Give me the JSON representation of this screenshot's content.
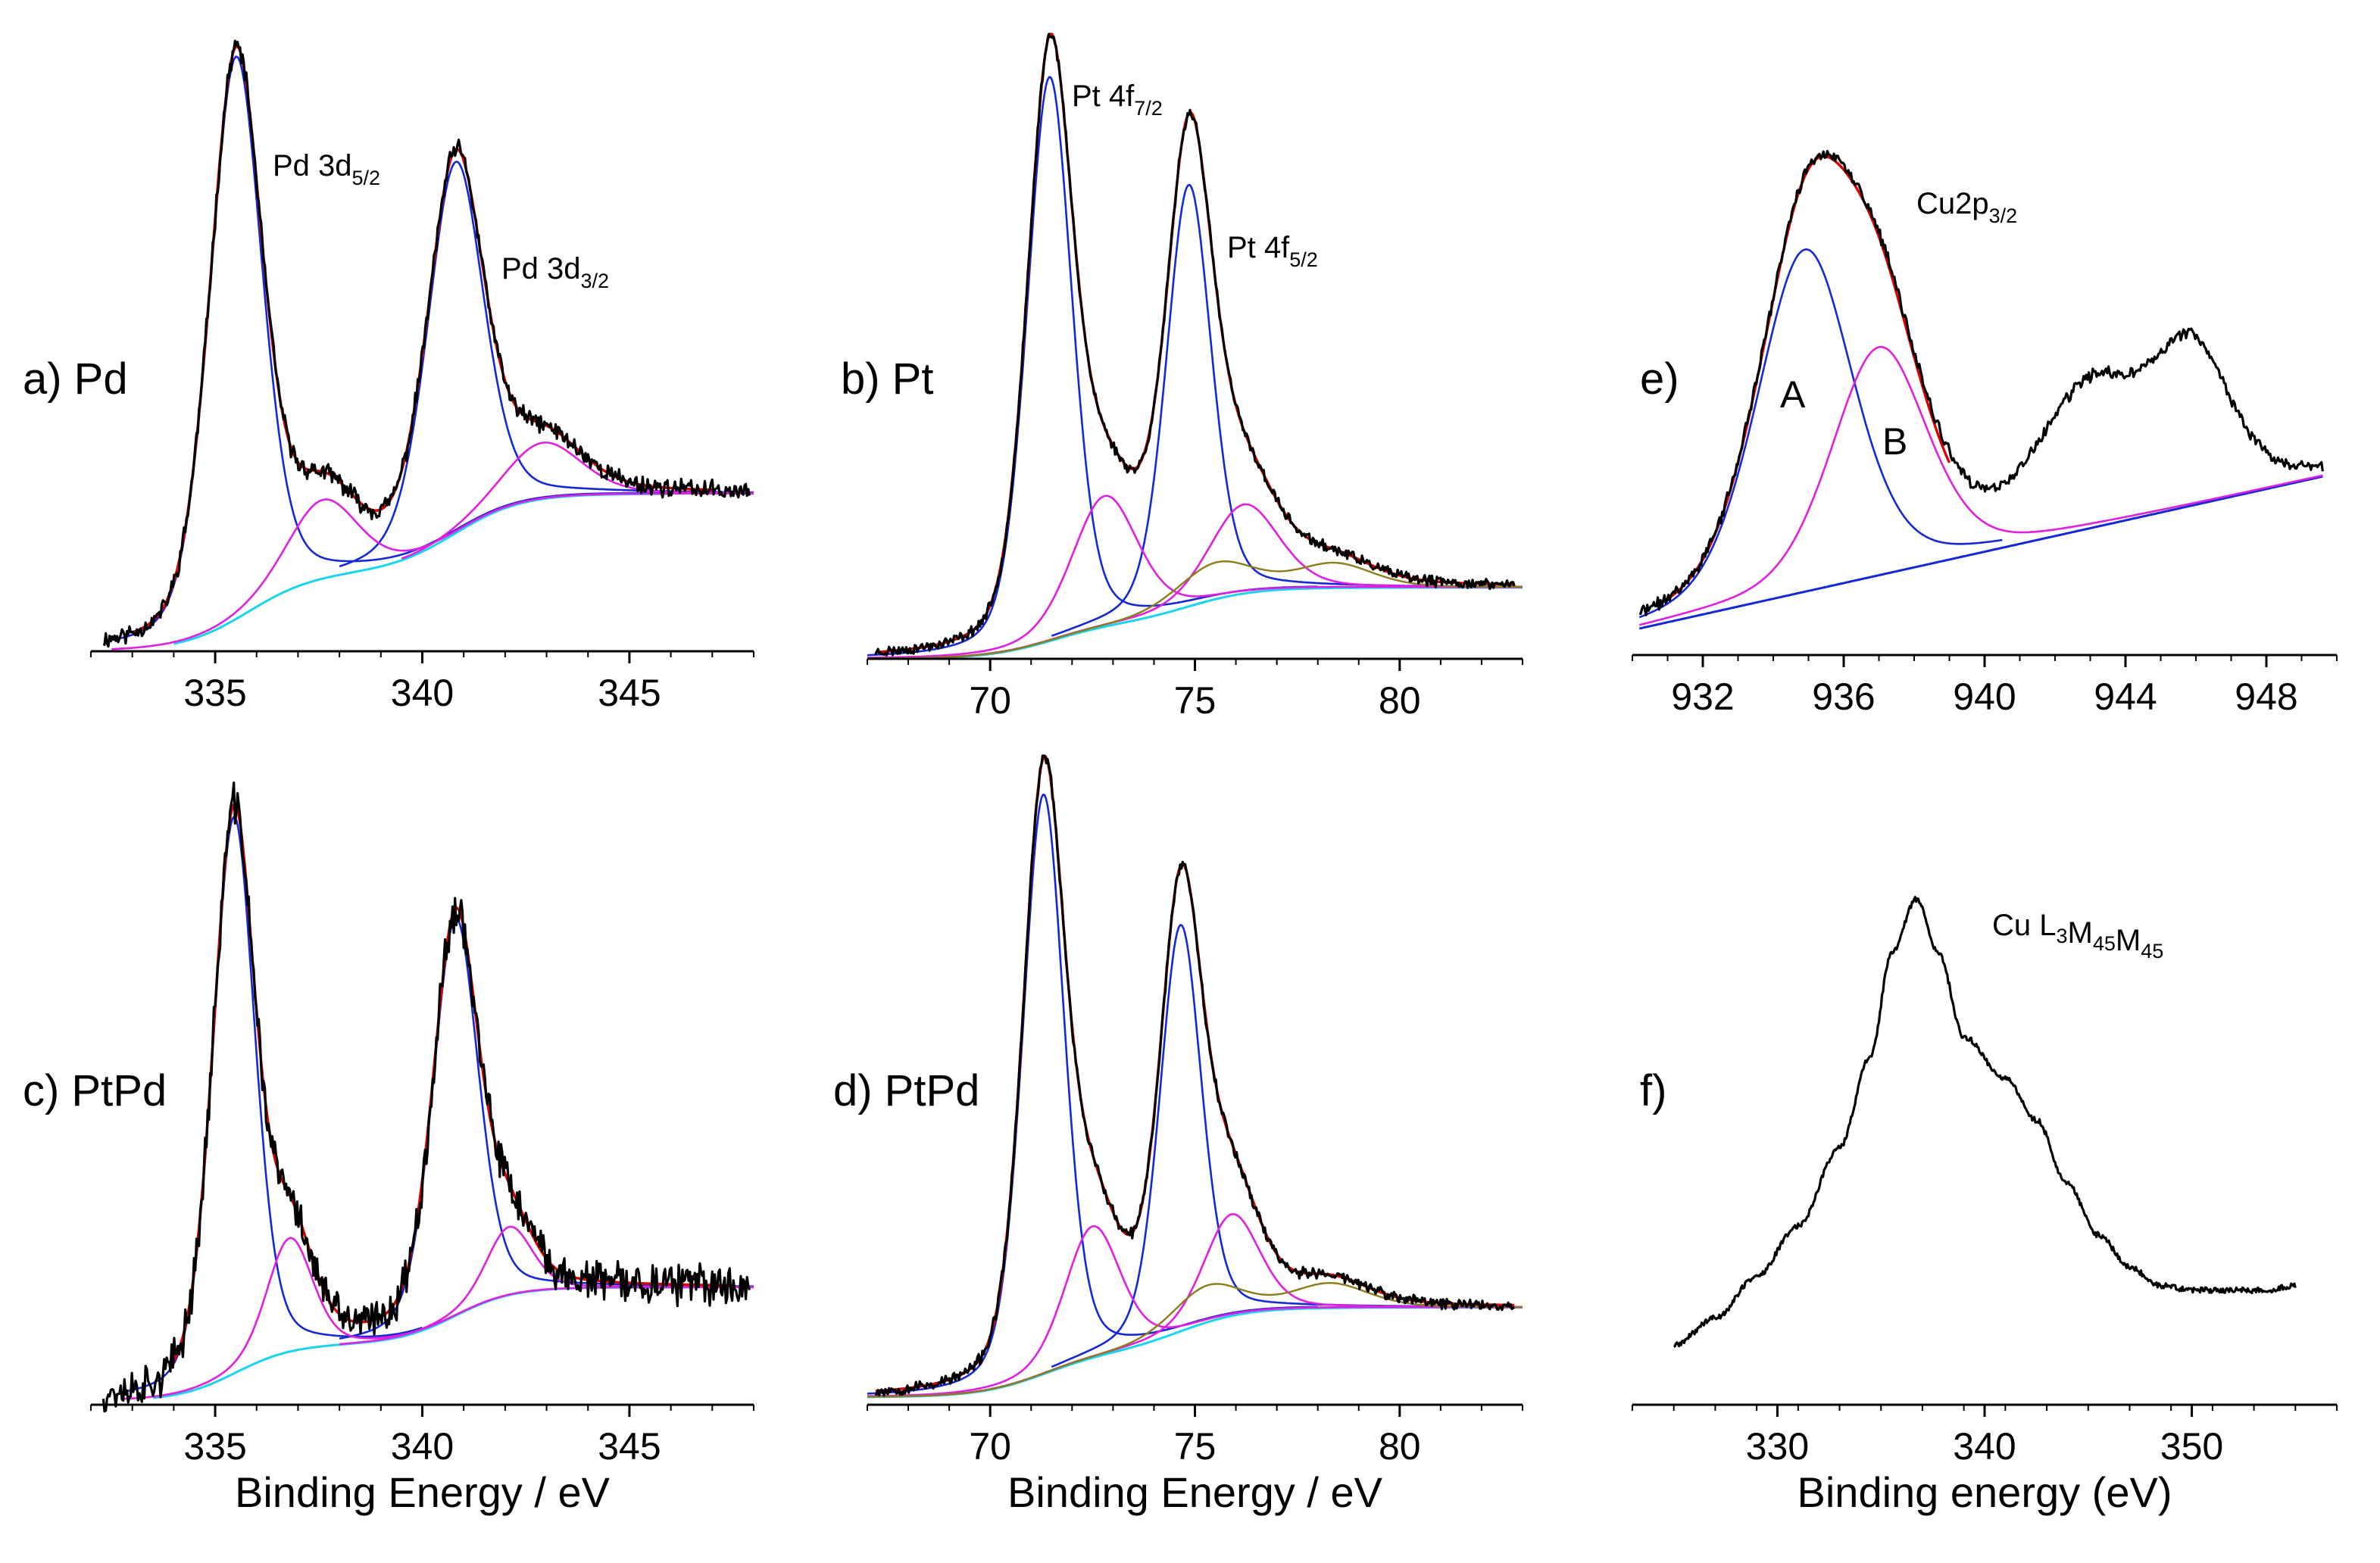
{
  "figure_title": "",
  "colors": {
    "data": "#000000",
    "envelope": "#e00000",
    "peak_main": "#1428d8",
    "peak_secondary": "#e020e0",
    "background_cyan": "#18d4ee",
    "background_olive": "#8b7d1a",
    "background_blue": "#1428d8"
  },
  "chart_data": [
    {
      "id": "a",
      "type": "line",
      "panel_label": "a) Pd",
      "xlabel": "",
      "ylabel": "",
      "xlim": [
        332,
        348
      ],
      "xticks": [
        335,
        340,
        345
      ],
      "xtick_labels": [
        "335",
        "340",
        "345"
      ],
      "annotations": [
        {
          "main": "Pd 3d",
          "sub": "5/2",
          "x": 337.8
        },
        {
          "main": "Pd 3d",
          "sub": "3/2",
          "x": 343.2
        }
      ],
      "background": {
        "kind": "shirley",
        "x0": 334.0,
        "x1": 346.0,
        "low": 0.0,
        "high": 0.28,
        "steps": [
          {
            "c": 335.8,
            "w": 0.8,
            "h": 0.5
          },
          {
            "c": 340.8,
            "w": 0.8,
            "h": 0.5
          }
        ]
      },
      "series": [
        {
          "name": "Pd 3d5/2 main",
          "role": "peak_main",
          "range": [
            332.5,
            348
          ],
          "peaks": [
            {
              "center": 335.5,
              "height": 1.0,
              "fwhm": 1.5
            }
          ]
        },
        {
          "name": "Pd 3d3/2 main",
          "role": "peak_main",
          "range": [
            338,
            348
          ],
          "peaks": [
            {
              "center": 340.8,
              "height": 0.66,
              "fwhm": 1.6
            }
          ]
        },
        {
          "name": "Pd 3d5/2 satellite",
          "role": "peak_secondary",
          "range": [
            332.5,
            348
          ],
          "peaks": [
            {
              "center": 337.6,
              "height": 0.14,
              "fwhm": 2.0
            }
          ]
        },
        {
          "name": "Pd 3d3/2 satellite",
          "role": "peak_secondary",
          "range": [
            339.5,
            348
          ],
          "peaks": [
            {
              "center": 342.9,
              "height": 0.1,
              "fwhm": 2.2
            }
          ]
        },
        {
          "name": "envelope",
          "role": "envelope",
          "range": [
            333.0,
            347.0
          ],
          "sum_all": true
        },
        {
          "name": "data",
          "role": "data",
          "range": [
            332.3,
            347.9
          ],
          "sum_all": true,
          "noise": 0.013,
          "seed": 11
        }
      ],
      "baseline": 0.0,
      "ymax": 1.05
    },
    {
      "id": "b",
      "type": "line",
      "panel_label": "b) Pt",
      "xlabel": "",
      "ylabel": "",
      "xlim": [
        67,
        83
      ],
      "xticks": [
        70,
        75,
        80
      ],
      "xtick_labels": [
        "70",
        "75",
        "80"
      ],
      "annotations": [
        {
          "main": "Pt 4f",
          "sub": "7/2",
          "x": 72.0
        },
        {
          "main": "Pt 4f",
          "sub": "5/2",
          "x": 77.1
        }
      ],
      "background": {
        "kind": "shirley",
        "x0": 67.0,
        "x1": 83.0,
        "low": 0.0,
        "high": 0.12,
        "steps": [
          {
            "c": 71.5,
            "w": 0.8,
            "h": 0.5
          },
          {
            "c": 74.9,
            "w": 0.8,
            "h": 0.5
          }
        ]
      },
      "series": [
        {
          "name": "Pt 4f7/2 main",
          "role": "peak_main",
          "range": [
            67,
            78
          ],
          "peaks": [
            {
              "center": 71.45,
              "height": 0.95,
              "fwhm": 1.3
            }
          ]
        },
        {
          "name": "Pt 4f5/2 main",
          "role": "peak_main",
          "range": [
            71.5,
            83
          ],
          "peaks": [
            {
              "center": 74.85,
              "height": 0.71,
              "fwhm": 1.3
            }
          ]
        },
        {
          "name": "Pt 4f7/2 satellite",
          "role": "peak_secondary",
          "range": [
            67,
            83
          ],
          "peaks": [
            {
              "center": 72.8,
              "height": 0.22,
              "fwhm": 1.9
            }
          ]
        },
        {
          "name": "Pt 4f5/2 satellite",
          "role": "peak_secondary",
          "range": [
            67,
            83
          ],
          "peaks": [
            {
              "center": 76.2,
              "height": 0.15,
              "fwhm": 2.0
            }
          ]
        },
        {
          "name": "Pt oxide",
          "role": "background_olive",
          "range": [
            67,
            83
          ],
          "peaks": [
            {
              "center": 75.5,
              "height": 0.06,
              "fwhm": 2.2
            },
            {
              "center": 78.4,
              "height": 0.04,
              "fwhm": 2.2
            }
          ]
        },
        {
          "name": "envelope",
          "role": "envelope",
          "range": [
            67.2,
            82.8
          ],
          "sum_all": true
        },
        {
          "name": "data",
          "role": "data",
          "range": [
            67.2,
            82.8
          ],
          "sum_all": true,
          "noise": 0.007,
          "seed": 23
        }
      ],
      "baseline": 0.0,
      "ymax": 1.02
    },
    {
      "id": "c",
      "type": "line",
      "panel_label": "c) PtPd",
      "xlabel": "Binding Energy / eV",
      "ylabel": "",
      "xlim": [
        332,
        348
      ],
      "xticks": [
        335,
        340,
        345
      ],
      "xtick_labels": [
        "335",
        "340",
        "345"
      ],
      "annotations": [],
      "background": {
        "kind": "shirley",
        "x0": 333.5,
        "x1": 346.5,
        "low": 0.0,
        "high": 0.2,
        "steps": [
          {
            "c": 335.5,
            "w": 0.7,
            "h": 0.5
          },
          {
            "c": 340.8,
            "w": 0.7,
            "h": 0.5
          }
        ]
      },
      "series": [
        {
          "name": "Pd 3d5/2 main",
          "role": "peak_main",
          "range": [
            332.8,
            340
          ],
          "peaks": [
            {
              "center": 335.45,
              "height": 0.98,
              "fwhm": 1.2
            }
          ]
        },
        {
          "name": "Pd 3d3/2 main",
          "role": "peak_main",
          "range": [
            338,
            348
          ],
          "peaks": [
            {
              "center": 340.8,
              "height": 0.7,
              "fwhm": 1.3
            }
          ]
        },
        {
          "name": "Pd 3d5/2 satellite",
          "role": "peak_secondary",
          "range": [
            332.8,
            348
          ],
          "peaks": [
            {
              "center": 336.8,
              "height": 0.2,
              "fwhm": 1.3
            }
          ]
        },
        {
          "name": "Pd 3d3/2 satellite",
          "role": "peak_secondary",
          "range": [
            338,
            348
          ],
          "peaks": [
            {
              "center": 342.1,
              "height": 0.12,
              "fwhm": 1.3
            }
          ]
        },
        {
          "name": "envelope",
          "role": "envelope",
          "range": [
            334.0,
            347.5
          ],
          "sum_all": true
        },
        {
          "name": "data",
          "role": "data",
          "range": [
            332.3,
            347.9
          ],
          "sum_all": true,
          "noise": 0.028,
          "seed": 37
        }
      ],
      "baseline": 0.0,
      "ymax": 1.08
    },
    {
      "id": "d",
      "type": "line",
      "panel_label": "d) PtPd",
      "xlabel": "Binding Energy / eV",
      "ylabel": "",
      "xlim": [
        67,
        83
      ],
      "xticks": [
        70,
        75,
        80
      ],
      "xtick_labels": [
        "70",
        "75",
        "80"
      ],
      "annotations": [],
      "background": {
        "kind": "shirley",
        "x0": 67.0,
        "x1": 83.0,
        "low": 0.0,
        "high": 0.15,
        "steps": [
          {
            "c": 71.3,
            "w": 0.8,
            "h": 0.5
          },
          {
            "c": 74.7,
            "w": 0.8,
            "h": 0.5
          }
        ]
      },
      "series": [
        {
          "name": "Pt 4f7/2 main",
          "role": "peak_main",
          "range": [
            67,
            78
          ],
          "peaks": [
            {
              "center": 71.3,
              "height": 0.97,
              "fwhm": 1.2
            }
          ]
        },
        {
          "name": "Pt 4f5/2 main",
          "role": "peak_main",
          "range": [
            71.5,
            83
          ],
          "peaks": [
            {
              "center": 74.65,
              "height": 0.68,
              "fwhm": 1.2
            }
          ]
        },
        {
          "name": "Pt 4f7/2 satellite",
          "role": "peak_secondary",
          "range": [
            67,
            83
          ],
          "peaks": [
            {
              "center": 72.5,
              "height": 0.22,
              "fwhm": 1.6
            }
          ]
        },
        {
          "name": "Pt 4f5/2 satellite",
          "role": "peak_secondary",
          "range": [
            67,
            83
          ],
          "peaks": [
            {
              "center": 75.9,
              "height": 0.17,
              "fwhm": 1.6
            }
          ]
        },
        {
          "name": "Pt oxide",
          "role": "background_olive",
          "range": [
            67,
            83
          ],
          "peaks": [
            {
              "center": 75.3,
              "height": 0.06,
              "fwhm": 2.0
            },
            {
              "center": 78.3,
              "height": 0.04,
              "fwhm": 2.2
            }
          ]
        },
        {
          "name": "envelope",
          "role": "envelope",
          "range": [
            67.2,
            82.8
          ],
          "sum_all": true
        },
        {
          "name": "data",
          "role": "data",
          "range": [
            67.2,
            82.8
          ],
          "sum_all": true,
          "noise": 0.008,
          "seed": 53
        }
      ],
      "baseline": 0.0,
      "ymax": 1.02
    },
    {
      "id": "e",
      "type": "line",
      "panel_label": "e)",
      "xlabel": "",
      "ylabel": "",
      "xlim": [
        930,
        950
      ],
      "xticks": [
        932,
        936,
        940,
        944,
        948
      ],
      "xtick_labels": [
        "932",
        "936",
        "940",
        "944",
        "948"
      ],
      "annotations": [
        {
          "main": "Cu2p",
          "sub": "3/2",
          "x": 938.0
        },
        {
          "main": "A",
          "sub": "",
          "x": 934.8
        },
        {
          "main": "B",
          "sub": "",
          "x": 937.1
        }
      ],
      "background": {
        "kind": "linear",
        "x0": 930.2,
        "x1": 949.6,
        "low": 0.0,
        "high": 0.32
      },
      "series": [
        {
          "name": "component A",
          "role": "peak_main",
          "range": [
            930.2,
            940.5
          ],
          "peaks": [
            {
              "center": 934.9,
              "height": 0.72,
              "fwhm": 3.2
            }
          ]
        },
        {
          "name": "component B",
          "role": "peak_secondary",
          "range": [
            930.2,
            949.6
          ],
          "peaks": [
            {
              "center": 937.0,
              "height": 0.48,
              "fwhm": 3.2
            }
          ]
        },
        {
          "name": "envelope",
          "role": "envelope",
          "range": [
            931.0,
            939.0
          ],
          "peaks_ref": [
            "component A",
            "component B"
          ]
        },
        {
          "name": "data",
          "role": "data",
          "range": [
            930.2,
            949.6
          ],
          "peaks_ref": [
            "component A",
            "component B"
          ],
          "extra_peaks": [
            {
              "center": 943.0,
              "height": 0.28,
              "fwhm": 3.5
            },
            {
              "center": 945.9,
              "height": 0.3,
              "fwhm": 2.6
            }
          ],
          "noise": 0.01,
          "seed": 71
        }
      ],
      "baseline": 0.0,
      "ymax": 0.98
    },
    {
      "id": "f",
      "type": "line",
      "panel_label": "f)",
      "xlabel": "Binding energy (eV)",
      "ylabel": "",
      "xlim": [
        323,
        357
      ],
      "xticks": [
        330,
        340,
        350
      ],
      "xtick_labels": [
        "330",
        "340",
        "350"
      ],
      "annotations": [
        {
          "main": "Cu L",
          "sub": "3",
          "x": 344.0
        },
        {
          "main": "M",
          "sub": "45",
          "x": 0
        },
        {
          "main": "M",
          "sub": "45",
          "x": 0
        }
      ],
      "background": {
        "kind": "none"
      },
      "series": [
        {
          "name": "Cu L3M45M45 Auger",
          "role": "data",
          "range": [
            325,
            355
          ],
          "points": [
            [
              325,
              0.03
            ],
            [
              327,
              0.09
            ],
            [
              329,
              0.18
            ],
            [
              331,
              0.29
            ],
            [
              333,
              0.46
            ],
            [
              334.5,
              0.66
            ],
            [
              335.5,
              0.88
            ],
            [
              336.7,
              1.0
            ],
            [
              337.8,
              0.88
            ],
            [
              339,
              0.7
            ],
            [
              341,
              0.61
            ],
            [
              342.5,
              0.52
            ],
            [
              344,
              0.38
            ],
            [
              345.5,
              0.27
            ],
            [
              347,
              0.2
            ],
            [
              348.5,
              0.16
            ],
            [
              350,
              0.15
            ],
            [
              352,
              0.15
            ],
            [
              353.5,
              0.15
            ],
            [
              355,
              0.16
            ]
          ],
          "noise": 0.006,
          "seed": 89
        }
      ],
      "baseline": 0.0,
      "ymax": 1.02
    }
  ]
}
